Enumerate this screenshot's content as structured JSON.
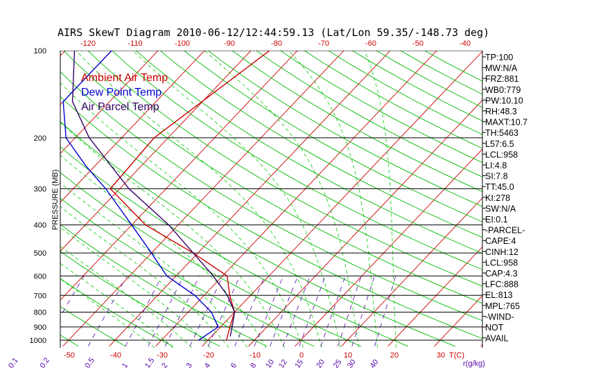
{
  "chart_data": {
    "type": "line",
    "title": "AIRS SkewT Diagram 2010-06-12/12:44:59.13 (Lat/Lon 59.35/-148.73 deg)",
    "ylabel": "PRESSURE (MB)",
    "xlabel": "T(C)",
    "mixing_ratio_label": "r(g/kg)",
    "pressure_ticks": [
      100,
      200,
      300,
      400,
      500,
      600,
      700,
      800,
      900,
      1000
    ],
    "bottom_temp_ticks": [
      -50,
      -40,
      -30,
      -20,
      -10,
      0,
      10,
      20,
      30
    ],
    "top_temp_ticks": [
      -120,
      -110,
      -100,
      -90,
      -80,
      -70,
      -60,
      -50,
      -40
    ],
    "mixing_ratio_ticks": [
      "0.1",
      "0.2",
      "0.5",
      "1",
      "1.5",
      "2",
      "3",
      "4",
      "6",
      "8",
      "10",
      "12",
      "15",
      "20",
      "25",
      "30",
      "40"
    ],
    "legend": [
      "Ambient Air Temp",
      "Dew Point Temp",
      "Air Parcel Temp"
    ],
    "series": [
      {
        "name": "Ambient Air Temp",
        "color": "#cc0000",
        "points": [
          [
            100,
            -46
          ],
          [
            200,
            -53
          ],
          [
            300,
            -52
          ],
          [
            400,
            -37
          ],
          [
            500,
            -21
          ],
          [
            600,
            -9
          ],
          [
            700,
            -4.5
          ],
          [
            800,
            0
          ],
          [
            900,
            2
          ],
          [
            1000,
            4
          ]
        ]
      },
      {
        "name": "Dew Point Temp",
        "color": "#0000cc",
        "points": [
          [
            100,
            -80
          ],
          [
            150,
            -80
          ],
          [
            200,
            -72
          ],
          [
            250,
            -62
          ],
          [
            300,
            -53
          ],
          [
            400,
            -40
          ],
          [
            500,
            -30
          ],
          [
            600,
            -22
          ],
          [
            700,
            -12
          ],
          [
            800,
            -5
          ],
          [
            900,
            -0.5
          ],
          [
            1000,
            -2
          ]
        ]
      },
      {
        "name": "Air Parcel Temp",
        "color": "#330066",
        "points": [
          [
            100,
            -88
          ],
          [
            150,
            -78
          ],
          [
            200,
            -67
          ],
          [
            300,
            -48
          ],
          [
            400,
            -32
          ],
          [
            500,
            -21
          ],
          [
            600,
            -12
          ],
          [
            700,
            -5
          ],
          [
            800,
            0
          ],
          [
            900,
            2.5
          ],
          [
            970,
            4
          ]
        ]
      }
    ],
    "indices": [
      "TP:100",
      "MW:N/A",
      "FRZ:881",
      "WB0:779",
      "PW:10.10",
      "RH:48.3",
      "MAXT:10.7",
      "TH:5463",
      "L57:6.5",
      "LCL:958",
      "LI:4.8",
      "SI:7.8",
      "TT:45.0",
      "KI:278",
      "SW:N/A",
      "EI:0.1",
      "-PARCEL-",
      "CAPE:4",
      "CINH:12",
      "LCL:958",
      "CAP:4.3",
      "LFC:888",
      "EL:813",
      "MPL:765",
      "-WIND-",
      "NOT",
      "AVAIL"
    ],
    "grid": true
  },
  "colors": {
    "isotherm": "#cc0000",
    "dry_adiabat": "#00bb00",
    "moist_adiabat": "#00cc00",
    "mixing_ratio": "#5500aa",
    "isobar": "#000000"
  }
}
